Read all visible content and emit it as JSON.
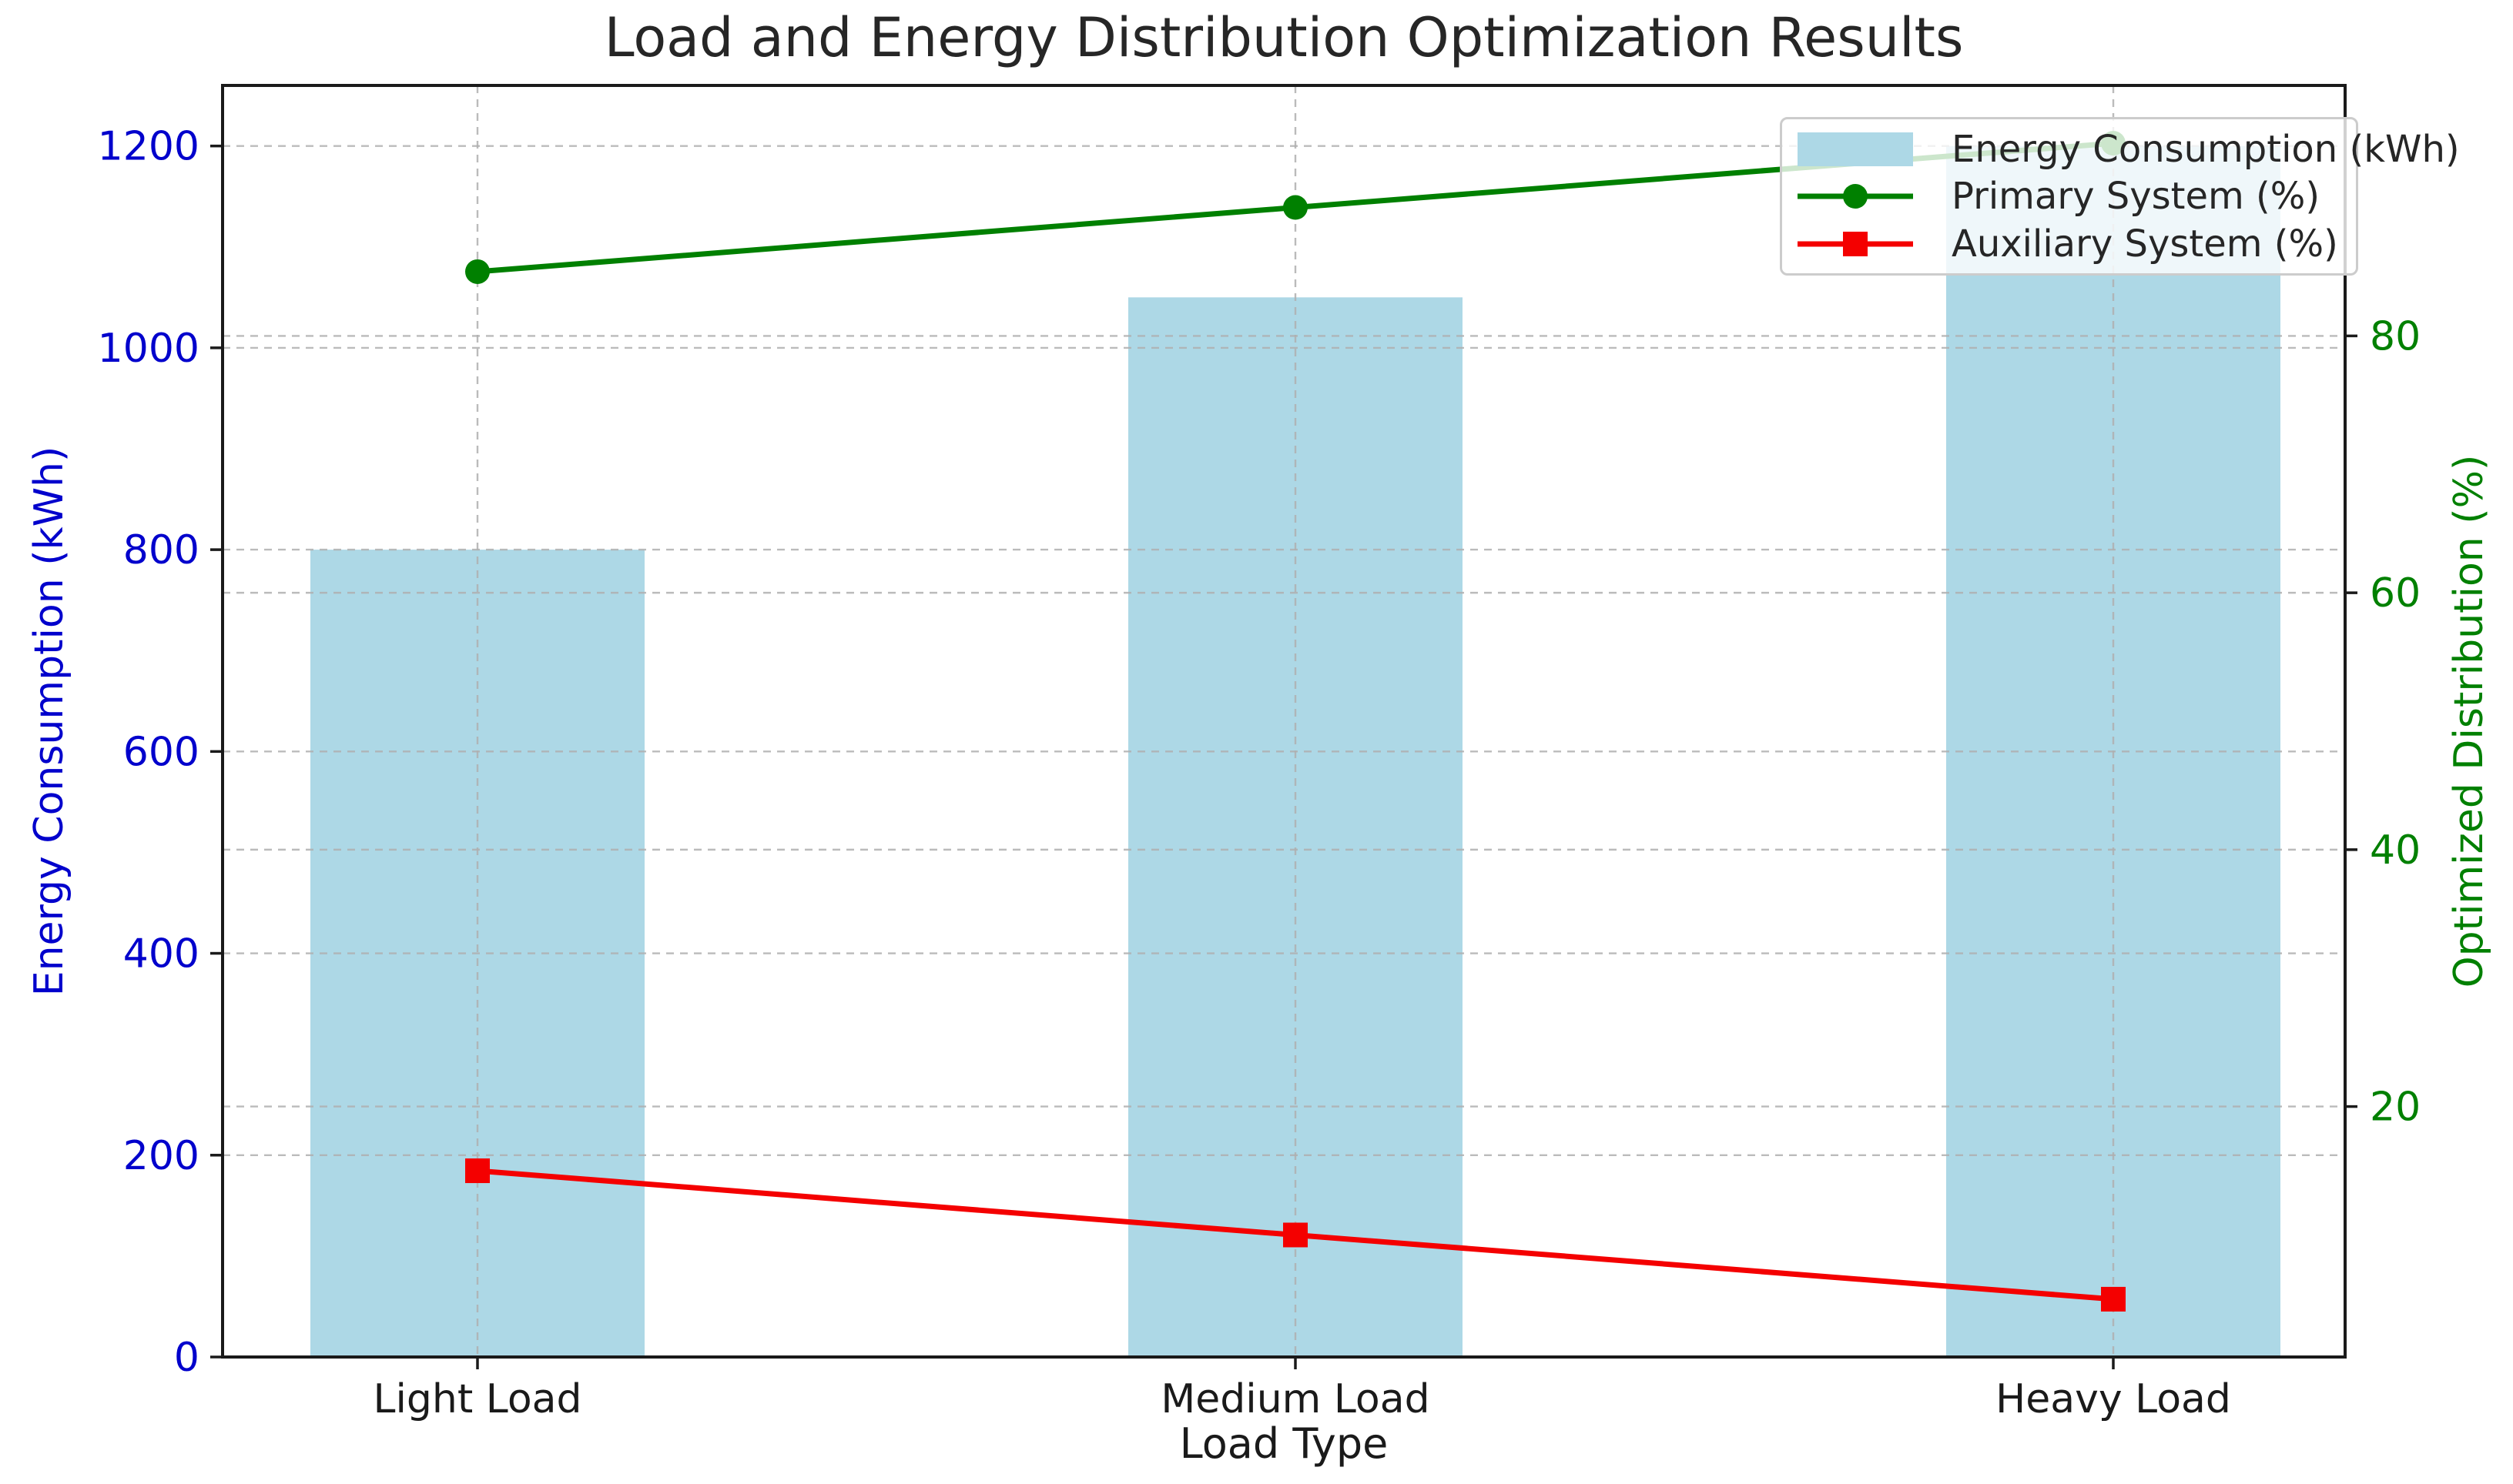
{
  "chart_data": {
    "type": "combo",
    "title": "Load and Energy Distribution Optimization Results",
    "xlabel": "Load Type",
    "ylabel_left": "Energy Consumption (kWh)",
    "ylabel_right": "Optimized Distribution (%)",
    "categories": [
      "Light Load",
      "Medium Load",
      "Heavy Load"
    ],
    "series": [
      {
        "name": "Energy Consumption (kWh)",
        "type": "bar",
        "axis": "left",
        "values": [
          800,
          1050,
          1200
        ],
        "color": "#ADD8E6"
      },
      {
        "name": "Primary System (%)",
        "type": "line",
        "axis": "right",
        "marker": "circle",
        "values": [
          85,
          90,
          95
        ],
        "color": "#008000"
      },
      {
        "name": "Auxiliary System (%)",
        "type": "line",
        "axis": "right",
        "marker": "square",
        "values": [
          15,
          10,
          5
        ],
        "color": "#f40000"
      }
    ],
    "left_axis": {
      "ticks": [
        0,
        200,
        400,
        600,
        800,
        1000,
        1200
      ],
      "lim": [
        0,
        1260
      ],
      "color": "#0000cc"
    },
    "right_axis": {
      "ticks": [
        20,
        40,
        60,
        80
      ],
      "lim": [
        0.5,
        99.5
      ],
      "color": "#008000"
    },
    "grid": {
      "style": "dashed",
      "color": "#b0b0b0"
    },
    "legend": {
      "position": "upper right",
      "entries": [
        "Energy Consumption (kWh)",
        "Primary System (%)",
        "Auxiliary System (%)"
      ]
    },
    "spine_color": "#1a1a1a",
    "tick_label_color_x": "#1a1a1a"
  }
}
